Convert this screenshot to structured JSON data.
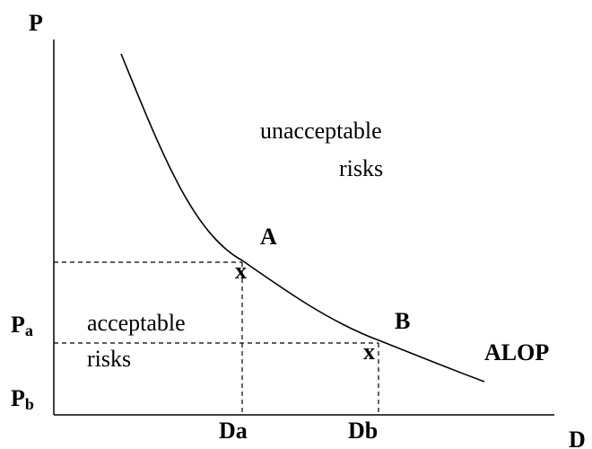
{
  "axes": {
    "y": "P",
    "x": "D"
  },
  "levels": [
    {
      "label": "P",
      "subscript": "a"
    },
    {
      "label": "P",
      "subscript": "b"
    }
  ],
  "distances": [
    {
      "label": "D",
      "subscript": "a"
    },
    {
      "label": "D",
      "subscript": "b"
    }
  ],
  "points": [
    {
      "label": "A",
      "marker": "x"
    },
    {
      "label": "B",
      "marker": "x"
    }
  ],
  "regions": {
    "unacceptable": [
      "unacceptable",
      "risks"
    ],
    "acceptable": [
      "acceptable",
      "risks"
    ]
  },
  "curve_label": "ALOP"
}
